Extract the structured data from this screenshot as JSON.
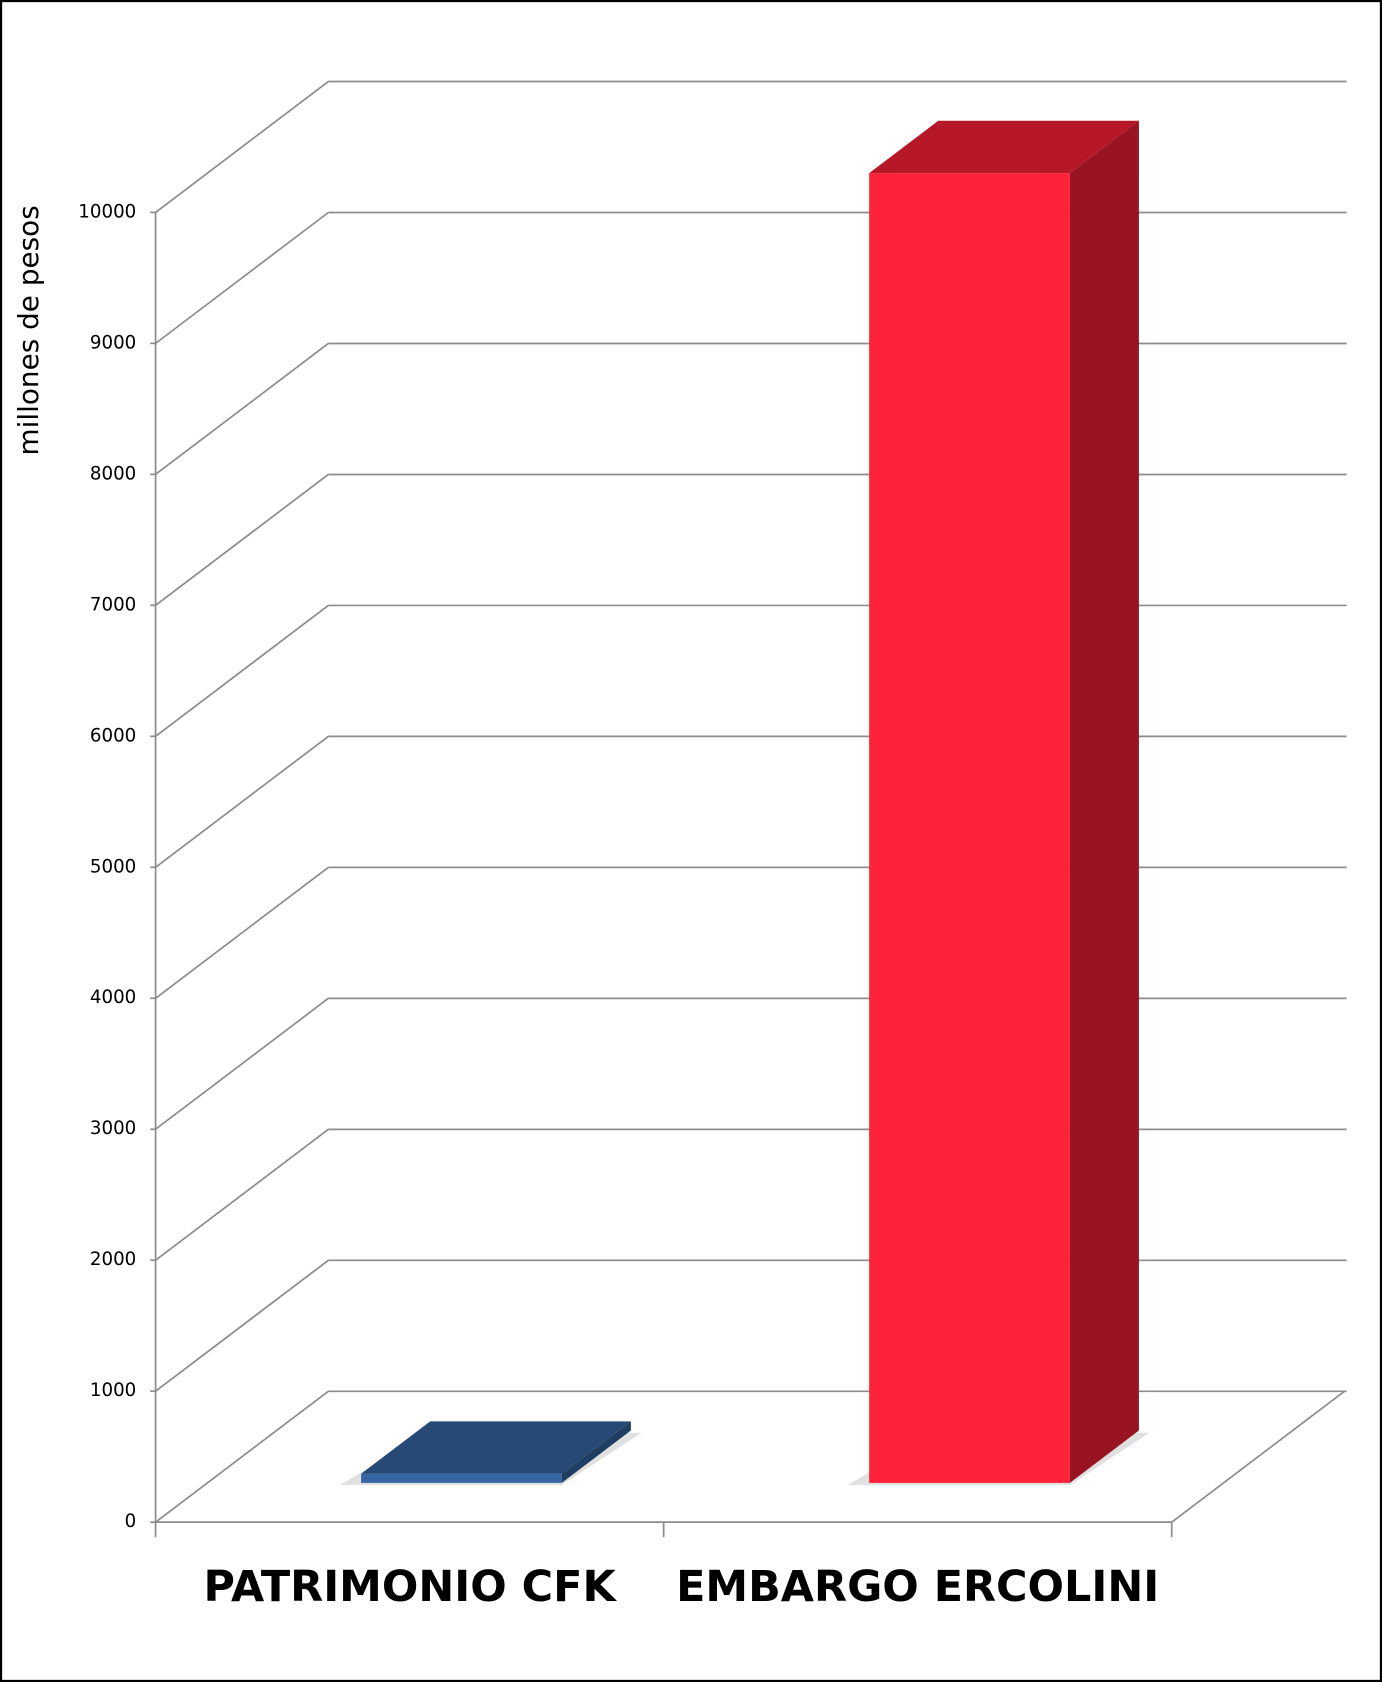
{
  "chart_data": {
    "type": "bar3d",
    "y_label": "millones de pesos",
    "categories": [
      "PATRIMONIO CFK",
      "EMBARGO ERCOLINI"
    ],
    "values": [
      70,
      10000
    ],
    "colors": [
      "#3566a3",
      "#fe2238"
    ],
    "ylim": [
      0,
      10000
    ],
    "yticks": [
      0,
      1000,
      2000,
      3000,
      4000,
      5000,
      6000,
      7000,
      8000,
      9000,
      10000
    ],
    "grid": true
  }
}
